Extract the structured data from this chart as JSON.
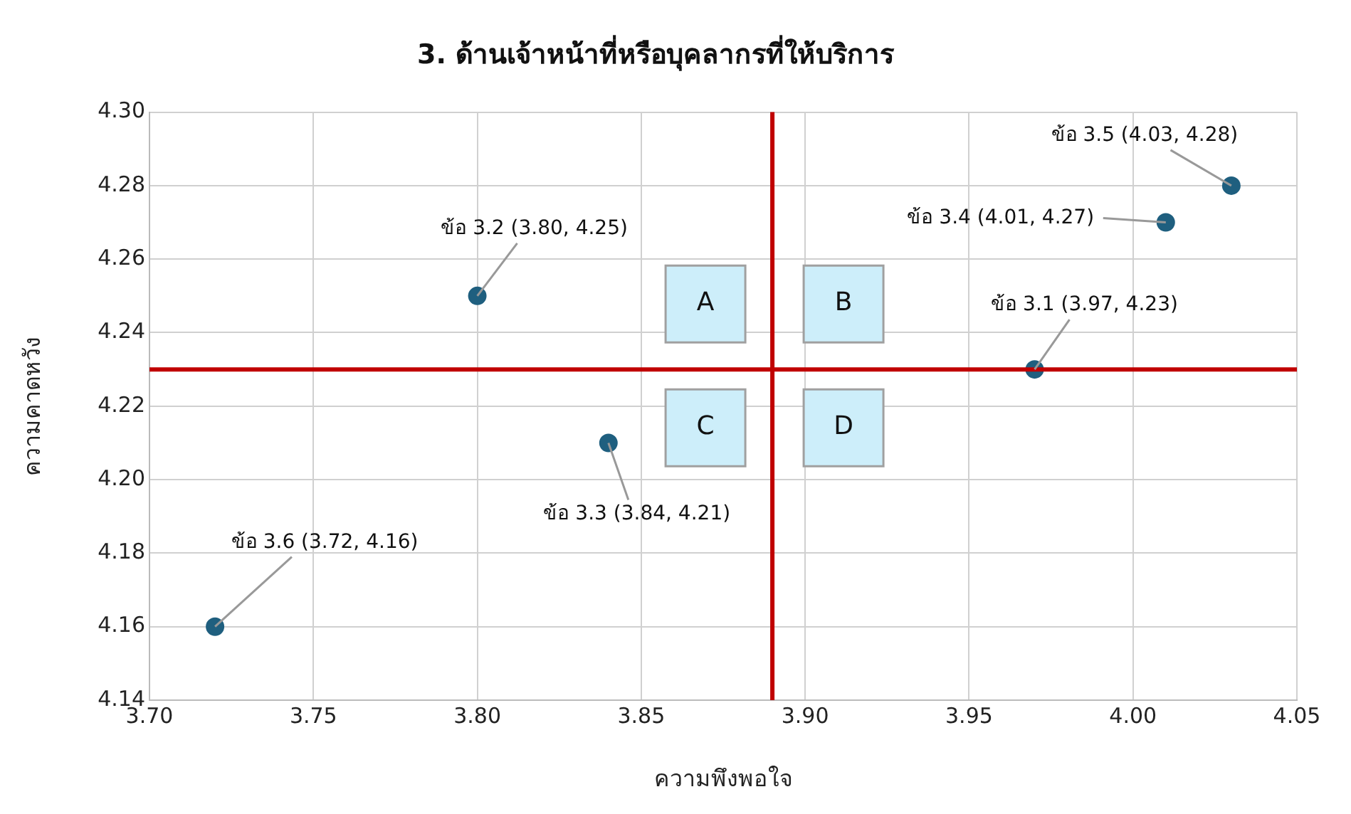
{
  "chart_data": {
    "type": "scatter",
    "title": "3. ด้านเจ้าหน้าที่หรือบุคลากรที่ให้บริการ",
    "xlabel": "ความพึงพอใจ",
    "ylabel": "ความคาดหวัง",
    "series": [
      {
        "color": "#1f5f7f",
        "x": [
          3.97,
          3.8,
          3.84,
          4.01,
          4.03,
          3.72
        ],
        "values": [
          4.23,
          4.25,
          4.21,
          4.27,
          4.28,
          4.16
        ],
        "value_labels": [
          "ข้อ 3.1 (3.97, 4.23)",
          "ข้อ 3.2 (3.80, 4.25)",
          "ข้อ 3.3 (3.84, 4.21)",
          "ข้อ 3.4 (4.01, 4.27)",
          "ข้อ 3.5 (4.03, 4.28)",
          "ข้อ 3.6 (3.72, 4.16)"
        ]
      }
    ],
    "xlim": [
      3.7,
      4.05
    ],
    "xticks": [
      {
        "value": 3.7,
        "label": "3.70"
      },
      {
        "value": 3.75,
        "label": "3.75"
      },
      {
        "value": 3.8,
        "label": "3.80"
      },
      {
        "value": 3.85,
        "label": "3.85"
      },
      {
        "value": 3.9,
        "label": "3.90"
      },
      {
        "value": 3.95,
        "label": "3.95"
      },
      {
        "value": 4.0,
        "label": "4.00"
      },
      {
        "value": 4.05,
        "label": "4.05"
      }
    ],
    "ylim": [
      4.14,
      4.3
    ],
    "yticks": [
      4.14,
      4.16,
      4.18,
      {
        "value": 4.2,
        "label": "4.20"
      },
      4.22,
      4.24,
      4.26,
      4.28,
      {
        "value": 4.3,
        "label": "4.30"
      }
    ],
    "ref_lines": [
      {
        "axis": "x",
        "value": 3.89,
        "color": "#c00000"
      },
      {
        "axis": "y",
        "value": 4.23,
        "color": "#c00000"
      }
    ],
    "annotations": [
      "A",
      "B",
      "C",
      "D"
    ],
    "grid": true,
    "legend": false,
    "marker": "circle"
  }
}
